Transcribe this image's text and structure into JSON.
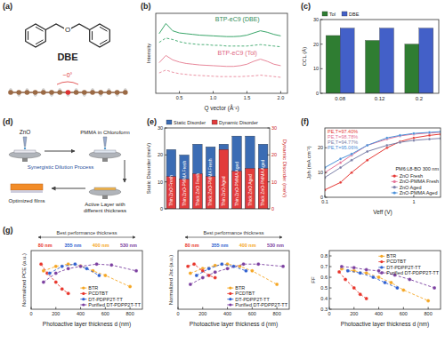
{
  "panel_a": {
    "label": "(a)",
    "molecule": "DBE",
    "atom": "O",
    "angle": "~0°"
  },
  "panel_d": {
    "label": "(d)",
    "zno": "ZnO",
    "solution": "PMMA in Chloroform",
    "process": "Synergistic Dilution Process",
    "active": "Active Layer with different thickness",
    "result": "Optimized films"
  },
  "chart_data": [
    {
      "label": "(b)",
      "type": "line",
      "x_label": "Q vector (Å⁻¹)",
      "y_label": "Intensity",
      "x": [
        0.2,
        0.3,
        0.4,
        0.5,
        0.6,
        0.7,
        0.8,
        0.9,
        1.0,
        1.1,
        1.2,
        1.3,
        1.4,
        1.5,
        1.6,
        1.7,
        1.8,
        1.9,
        2.0
      ],
      "xlim": [
        0.15,
        2.1
      ],
      "xticks": [
        0.5,
        {
          "value": 1,
          "label": "1.0"
        },
        1.5,
        {
          "value": 2,
          "label": "2.0"
        }
      ],
      "ylim": [
        0,
        11
      ],
      "tick_labels": "x",
      "series": [
        {
          "color": "#3aa66a",
          "line_style": "solid",
          "values": [
            8.2,
            9.6,
            8.6,
            8.3,
            8.2,
            8.1,
            8.0,
            7.95,
            7.9,
            7.85,
            7.8,
            7.8,
            7.85,
            8.0,
            8.3,
            8.6,
            8.4,
            8.1,
            7.9
          ]
        },
        {
          "color": "#3aa66a",
          "line_style": "dashed",
          "values": [
            7.0,
            7.6,
            7.4,
            7.1,
            6.9,
            6.8,
            6.7,
            6.7,
            6.6,
            6.6,
            6.5,
            6.5,
            6.5,
            6.5,
            6.6,
            6.7,
            6.6,
            6.5,
            6.4
          ]
        },
        {
          "color": "#e8879a",
          "line_style": "solid",
          "values": [
            4.2,
            5.2,
            4.6,
            4.3,
            4.1,
            4.0,
            3.9,
            3.85,
            3.8,
            3.75,
            3.7,
            3.7,
            3.8,
            4.0,
            4.4,
            4.7,
            4.4,
            4.0,
            3.8
          ]
        },
        {
          "color": "#e8879a",
          "line_style": "dashed",
          "values": [
            2.8,
            3.2,
            2.9,
            2.7,
            2.6,
            2.5,
            2.45,
            2.4,
            2.35,
            2.3,
            2.3,
            2.3,
            2.3,
            2.35,
            2.4,
            2.5,
            2.4,
            2.3,
            2.2
          ]
        }
      ],
      "annotations": [
        {
          "text": "BTP-eC9 (DBE)",
          "color": "#2e8b57"
        },
        {
          "text": "BTP-eC9 (Tol)",
          "color": "#e0697f"
        }
      ]
    },
    {
      "label": "(c)",
      "type": "bar",
      "y_label": "CCL (Å)",
      "categories": [
        "0.08",
        "0.12",
        "0.2"
      ],
      "ylim": [
        0,
        30
      ],
      "yticks": [
        0,
        10,
        20,
        30
      ],
      "legend": "top",
      "series": [
        {
          "name": "Tol",
          "color": "#2f7d32",
          "values": [
            23.5,
            21.5,
            20
          ]
        },
        {
          "name": "DBE",
          "color": "#4360c8",
          "values": [
            26.5,
            26.5,
            26.5
          ]
        }
      ]
    },
    {
      "label": "(e)",
      "type": "bar",
      "y_label": "Static Disorder (meV)",
      "y2_label": "Dynamic Disorder (meV)",
      "categories": [
        "Thin ZnO Fresh",
        "Thin ZnO-PMMA Fresh",
        "Thick ZnO Fresh",
        "Thick ZnO-PMMA Fresh",
        "Thin ZnO Aged",
        "Thin ZnO-PMMA Aged",
        "Thick ZnO Aged",
        "Thick ZnO-PMMA Aged"
      ],
      "ylim": [
        0,
        30
      ],
      "yticks": [
        0,
        10,
        20,
        30
      ],
      "y2lim": [
        0,
        30
      ],
      "y2ticks": [
        0,
        10,
        20,
        30
      ],
      "legend": "top",
      "series": [
        {
          "name": "Static Disorder",
          "color": "#3b6cb4",
          "values": [
            22,
            20,
            24,
            23,
            24,
            27,
            27,
            24
          ]
        },
        {
          "name": "Dynamic Disorder",
          "color": "#e23b3b",
          "axis": "y2",
          "values": [
            12,
            11,
            13,
            12,
            22,
            14,
            15,
            15
          ]
        }
      ]
    },
    {
      "label": "(f)",
      "type": "line",
      "log": "x",
      "x_label": "Veff (V)",
      "y_label": "Jph (mA cm⁻²)",
      "x": [
        0.1,
        0.15,
        0.2,
        0.3,
        0.5,
        0.7,
        1,
        1.5,
        2
      ],
      "xlim": [
        0.1,
        2
      ],
      "xticks": [
        0.1,
        1
      ],
      "ylim": [
        0,
        28
      ],
      "yticks": [
        0,
        10,
        20
      ],
      "legend": "lower right",
      "marker": "circle",
      "subtitle": "PM6:L8-BO 300 nm",
      "series": [
        {
          "name": "ZnO Fresh",
          "color": "#e53935",
          "values": [
            3,
            6,
            10,
            15,
            20,
            22.5,
            24,
            25,
            25.5
          ]
        },
        {
          "name": "ZnO-PMMA Fresh",
          "color": "#e57398",
          "values": [
            10,
            14,
            17,
            21,
            23.5,
            24.8,
            25.5,
            26,
            26.3
          ]
        },
        {
          "name": "ZnO Aged",
          "color": "#7b7fa8",
          "values": [
            8,
            12,
            15,
            18.5,
            21,
            22.2,
            23,
            23.5,
            23.8
          ]
        },
        {
          "name": "ZnO-PMMA Aged",
          "color": "#4a90d9",
          "values": [
            12,
            15.5,
            17.5,
            21,
            24,
            25,
            25.8,
            26.2,
            26.5
          ]
        }
      ],
      "annotations": [
        {
          "text": "PE,T=97.40%",
          "color": "#e53935"
        },
        {
          "text": "PE,T=98.78%",
          "color": "#e57398"
        },
        {
          "text": "PE,T=94.77%",
          "color": "#7b7fa8"
        },
        {
          "text": "PE,T=95.06%",
          "color": "#4a90d9"
        }
      ]
    },
    {
      "label": "(g)",
      "type": "line",
      "x_label": "Photoactive layer thickness d (nm)",
      "y_label": "Normalized PCE (a.u.)",
      "xlim": [
        0,
        900
      ],
      "xticks": [
        0,
        200,
        400,
        600,
        800
      ],
      "ylim": [
        0,
        1.3
      ],
      "tick_labels": "x",
      "legend": "lower right",
      "marker": "circle",
      "line_style": "dashed",
      "title": "Best performance thickness",
      "annotations": [
        {
          "text": "80 nm",
          "color": "#e8352b"
        },
        {
          "text": "355 nm",
          "color": "#2f5fd0"
        },
        {
          "text": "400 nm",
          "color": "#f5a623"
        },
        {
          "text": "530 nm",
          "color": "#7b3fa0"
        }
      ],
      "series": [
        {
          "name": "BTR",
          "color": "#f5a623",
          "x": [
            100,
            200,
            300,
            400,
            500,
            600,
            800
          ],
          "values": [
            0.85,
            0.95,
            1.0,
            0.96,
            0.85,
            0.75,
            0.5
          ]
        },
        {
          "name": "PCDTBT",
          "color": "#e8352b",
          "x": [
            80,
            130,
            200,
            250,
            300
          ],
          "values": [
            1.0,
            0.8,
            0.6,
            0.45,
            0.35
          ]
        },
        {
          "name": "DT-PDPP2T-TT",
          "color": "#2f5fd0",
          "x": [
            150,
            250,
            355,
            450,
            550
          ],
          "values": [
            0.8,
            0.95,
            1.0,
            0.9,
            0.75
          ]
        },
        {
          "name": "Purified DT-PDPP2T-TT",
          "color": "#7b3fa0",
          "x": [
            100,
            200,
            300,
            400,
            530,
            650,
            850
          ],
          "values": [
            0.6,
            0.8,
            0.9,
            0.95,
            1.0,
            0.98,
            0.85
          ]
        }
      ]
    },
    {
      "type": "line",
      "x_label": "Photoactive layer thickness d (nm)",
      "y_label": "Normalized Jsc (a.u.)",
      "xlim": [
        0,
        900
      ],
      "xticks": [
        0,
        200,
        400,
        600,
        800
      ],
      "ylim": [
        0,
        1.3
      ],
      "tick_labels": "x",
      "legend": "lower right",
      "marker": "circle",
      "line_style": "dashed",
      "title": "Best performance thickness",
      "annotations": [
        {
          "text": "80 nm",
          "color": "#e8352b"
        },
        {
          "text": "355 nm",
          "color": "#2f5fd0"
        },
        {
          "text": "400 nm",
          "color": "#f5a623"
        },
        {
          "text": "530 nm",
          "color": "#7b3fa0"
        }
      ],
      "series": [
        {
          "name": "BTR",
          "color": "#f5a623",
          "x": [
            100,
            200,
            300,
            400,
            500,
            600,
            800
          ],
          "values": [
            0.8,
            0.9,
            0.97,
            1.0,
            0.95,
            0.85,
            0.55
          ]
        },
        {
          "name": "PCDTBT",
          "color": "#e8352b",
          "x": [
            80,
            130,
            200,
            250,
            300
          ],
          "values": [
            0.95,
            1.0,
            0.85,
            0.75,
            0.7
          ]
        },
        {
          "name": "DT-PDPP2T-TT",
          "color": "#2f5fd0",
          "x": [
            150,
            250,
            355,
            450,
            550
          ],
          "values": [
            0.75,
            0.9,
            1.0,
            0.95,
            0.85
          ]
        },
        {
          "name": "Purified DT-PDPP2T-TT",
          "color": "#7b3fa0",
          "x": [
            100,
            200,
            300,
            400,
            530,
            650,
            850
          ],
          "values": [
            0.55,
            0.7,
            0.82,
            0.9,
            1.0,
            1.0,
            0.95
          ]
        }
      ]
    },
    {
      "type": "line",
      "x_label": "Photoactive layer thickness d (nm)",
      "y_label": "FF",
      "xlim": [
        0,
        900
      ],
      "xticks": [
        0,
        200,
        400,
        600,
        800
      ],
      "ylim": [
        0.3,
        0.85
      ],
      "yticks": [
        0.3,
        0.4,
        0.5,
        0.6,
        0.7,
        0.8
      ],
      "legend": "upper right",
      "marker": "circle",
      "line_style": "dashed",
      "series": [
        {
          "name": "BTR",
          "color": "#f5a623",
          "x": [
            100,
            200,
            300,
            400,
            500,
            600,
            800
          ],
          "values": [
            0.68,
            0.66,
            0.64,
            0.6,
            0.55,
            0.48,
            0.38
          ]
        },
        {
          "name": "PCDTBT",
          "color": "#e8352b",
          "x": [
            80,
            130,
            200,
            250,
            300
          ],
          "values": [
            0.65,
            0.58,
            0.5,
            0.44,
            0.4
          ]
        },
        {
          "name": "DT-PDPP2T-TT",
          "color": "#2f5fd0",
          "x": [
            150,
            250,
            355,
            450,
            550
          ],
          "values": [
            0.66,
            0.64,
            0.6,
            0.55,
            0.5
          ]
        },
        {
          "name": "Purified DT-PDPP2T-TT",
          "color": "#7b3fa0",
          "x": [
            100,
            200,
            300,
            400,
            530,
            650,
            850
          ],
          "values": [
            0.7,
            0.69,
            0.67,
            0.66,
            0.62,
            0.58,
            0.5
          ]
        }
      ]
    }
  ]
}
